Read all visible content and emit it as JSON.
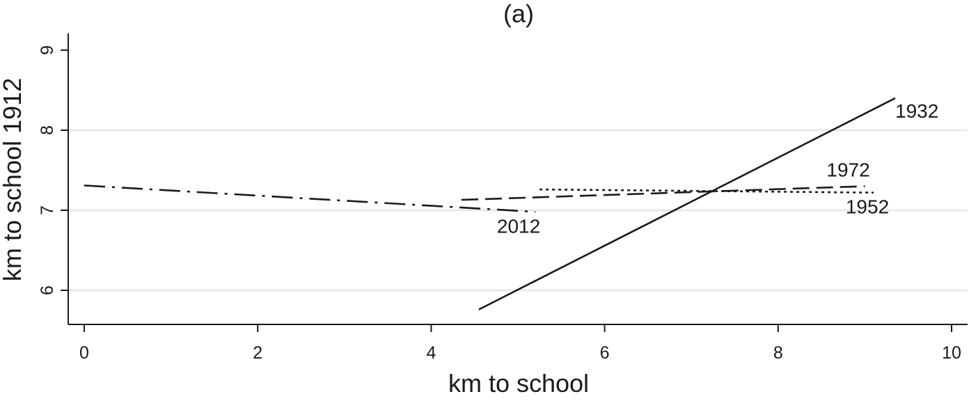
{
  "chart_data": {
    "type": "line",
    "title": "(a)",
    "xlabel": "km to school",
    "ylabel": "km to school 1912",
    "xlim": [
      0,
      10
    ],
    "ylim": [
      5.6,
      9
    ],
    "xticks": [
      "0",
      "2",
      "4",
      "6",
      "8",
      "10"
    ],
    "yticks": [
      "6",
      "7",
      "8",
      "9"
    ],
    "grid": true,
    "legend": "none",
    "series": [
      {
        "name": "1932",
        "style": "solid",
        "x": [
          4.55,
          9.35
        ],
        "y": [
          5.76,
          8.4
        ]
      },
      {
        "name": "1952",
        "style": "dotted",
        "x": [
          5.25,
          9.1
        ],
        "y": [
          7.26,
          7.22
        ]
      },
      {
        "name": "1972",
        "style": "dashed",
        "x": [
          4.35,
          9.0
        ],
        "y": [
          7.13,
          7.3
        ]
      },
      {
        "name": "2012",
        "style": "dashdot",
        "x": [
          0.0,
          5.2
        ],
        "y": [
          7.31,
          6.98
        ]
      }
    ]
  }
}
